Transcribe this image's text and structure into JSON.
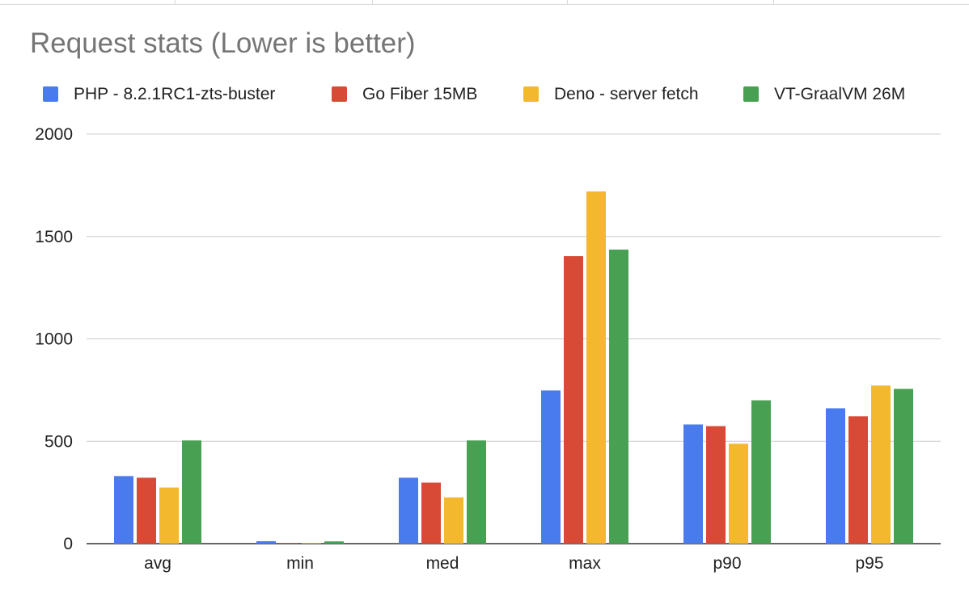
{
  "chart_data": {
    "type": "bar",
    "title": "Request stats (Lower is better)",
    "xlabel": "",
    "ylabel": "",
    "categories": [
      "avg",
      "min",
      "med",
      "max",
      "p90",
      "p95"
    ],
    "ylim": [
      0,
      2000
    ],
    "yticks": [
      "0",
      "500",
      "1000",
      "1500",
      "2000"
    ],
    "grid": true,
    "legend_position": "top",
    "series": [
      {
        "name": "PHP - 8.2.1RC1-zts-buster",
        "color": "#4a7bee",
        "values": [
          330,
          12,
          322,
          748,
          582,
          661
        ]
      },
      {
        "name": "Go Fiber 15MB",
        "color": "#d84a36",
        "values": [
          322,
          1,
          298,
          1404,
          574,
          622
        ]
      },
      {
        "name": "Deno - server fetch",
        "color": "#f3b82d",
        "values": [
          274,
          2,
          226,
          1720,
          488,
          772
        ]
      },
      {
        "name": "VT-GraalVM 26M",
        "color": "#48a152",
        "values": [
          504,
          11,
          504,
          1436,
          700,
          756
        ]
      }
    ]
  }
}
